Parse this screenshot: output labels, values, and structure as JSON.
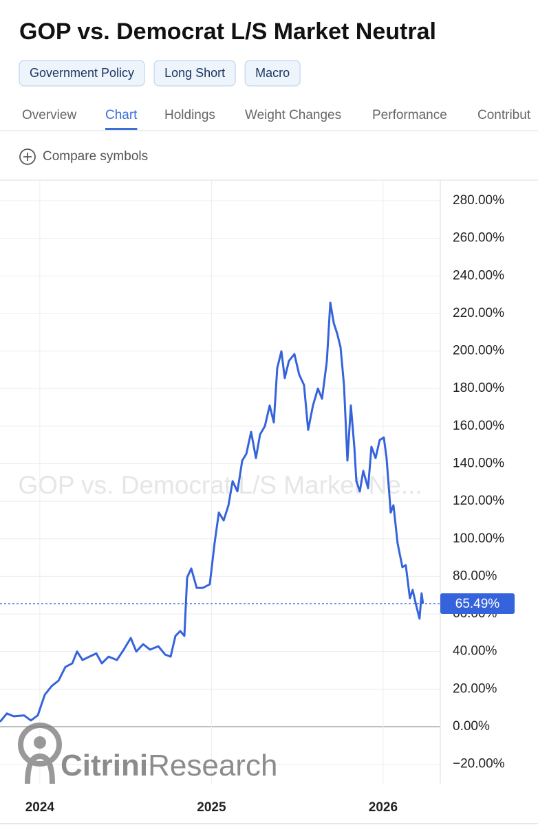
{
  "header": {
    "title": "GOP vs. Democrat L/S Market Neutral",
    "tags": [
      "Government Policy",
      "Long Short",
      "Macro"
    ],
    "tabs": [
      "Overview",
      "Chart",
      "Holdings",
      "Weight Changes",
      "Performance",
      "Contribut"
    ],
    "compare": "Compare symbols"
  },
  "watermark": "GOP vs. Democrat L/S Market Ne...",
  "logo": [
    "Citrini",
    "Research"
  ],
  "chart_data": {
    "type": "line",
    "color": "#3563dc",
    "grid": true,
    "x": [
      2023.768,
      2023.808,
      2023.848,
      2023.908,
      2023.948,
      2023.988,
      2024.029,
      2024.069,
      2024.109,
      2024.149,
      2024.189,
      2024.217,
      2024.249,
      2024.289,
      2024.329,
      2024.361,
      2024.401,
      2024.449,
      2024.489,
      2024.53,
      2024.562,
      2024.602,
      2024.642,
      2024.69,
      2024.73,
      2024.762,
      2024.79,
      2024.818,
      2024.842,
      2024.858,
      2024.882,
      2024.914,
      2024.95,
      2024.99,
      2025.018,
      2025.043,
      2025.071,
      2025.099,
      2025.123,
      2025.151,
      2025.179,
      2025.203,
      2025.231,
      2025.259,
      2025.283,
      2025.311,
      2025.339,
      2025.363,
      2025.383,
      2025.407,
      2025.427,
      2025.451,
      2025.483,
      2025.511,
      2025.539,
      2025.563,
      2025.591,
      2025.62,
      2025.644,
      2025.672,
      2025.692,
      2025.712,
      2025.732,
      2025.752,
      2025.772,
      2025.792,
      2025.812,
      2025.832,
      2025.844,
      2025.864,
      2025.884,
      2025.912,
      2025.932,
      2025.956,
      2025.98,
      2026.004,
      2026.02,
      2026.044,
      2026.06,
      2026.084,
      2026.112,
      2026.132,
      2026.156,
      2026.172,
      2026.192,
      2026.212,
      2026.224,
      2026.232
    ],
    "values": [
      2.6,
      7,
      5.5,
      6,
      3.3,
      6,
      17,
      21.6,
      24.5,
      31.8,
      33.7,
      40,
      35.5,
      37.3,
      39,
      33.7,
      37.3,
      35.5,
      41,
      47.2,
      40,
      43.9,
      41,
      42.8,
      38.4,
      37.3,
      48.3,
      50.9,
      48.3,
      79.4,
      84.2,
      73.9,
      73.9,
      75.8,
      97.7,
      114,
      109.8,
      117.9,
      130.7,
      125.3,
      141.7,
      145.3,
      157,
      143,
      155.6,
      160,
      171,
      162,
      191,
      199.9,
      185.6,
      194.7,
      198.4,
      187.4,
      181.9,
      158,
      171,
      180,
      174.6,
      194.7,
      225.8,
      214.9,
      209.4,
      202,
      181.9,
      141.7,
      171,
      149,
      130.7,
      125.3,
      136.2,
      127,
      149,
      143,
      152.6,
      154,
      143,
      114,
      117.9,
      97.7,
      84.9,
      86,
      68.4,
      72.8,
      64.8,
      57.5,
      71,
      65.49
    ],
    "last_value": {
      "value": 65.49,
      "label": "65.49%"
    },
    "xlim": [
      2023.768,
      2026.333
    ],
    "xticks": [
      2024,
      2025,
      2026
    ],
    "ylim": [
      -30.4,
      291
    ],
    "yticks": [
      {
        "value": -20,
        "label": "−20.00%"
      },
      {
        "value": 0,
        "label": "0.00%"
      },
      {
        "value": 20,
        "label": "20.00%"
      },
      {
        "value": 40,
        "label": "40.00%"
      },
      {
        "value": 60,
        "label": "60.00%"
      },
      {
        "value": 80,
        "label": "80.00%"
      },
      {
        "value": 100,
        "label": "100.00%"
      },
      {
        "value": 120,
        "label": "120.00%"
      },
      {
        "value": 140,
        "label": "140.00%"
      },
      {
        "value": 160,
        "label": "160.00%"
      },
      {
        "value": 180,
        "label": "180.00%"
      },
      {
        "value": 200,
        "label": "200.00%"
      },
      {
        "value": 220,
        "label": "220.00%"
      },
      {
        "value": 240,
        "label": "240.00%"
      },
      {
        "value": 260,
        "label": "260.00%"
      },
      {
        "value": 280,
        "label": "280.00%"
      }
    ]
  }
}
